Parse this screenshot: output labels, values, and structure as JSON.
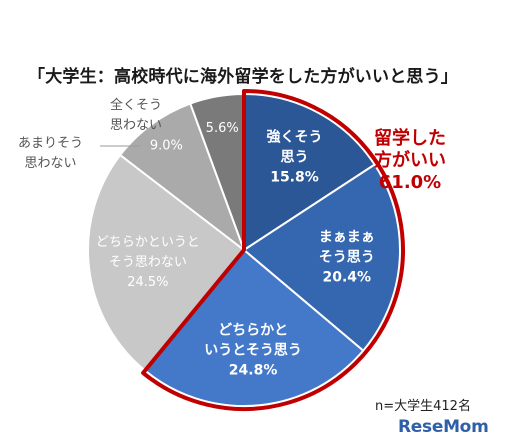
{
  "chart_data": {
    "type": "pie",
    "title": "「大学生：高校時代に海外留学をした方がいいと思う」",
    "slices": [
      {
        "label": "強くそう思う",
        "value": 15.8,
        "value_text": "15.8%",
        "color": "#2b5796",
        "group": "think"
      },
      {
        "label": "まぁまぁそう思う",
        "value": 20.4,
        "value_text": "20.4%",
        "color": "#3467b0",
        "group": "think"
      },
      {
        "label": "どちらかというとそう思う",
        "value": 24.8,
        "value_text": "24.8%",
        "color": "#4478c8",
        "group": "think"
      },
      {
        "label": "どちらかというとそう思わない",
        "value": 24.5,
        "value_text": "24.5%",
        "color": "#c8c8c8",
        "group": "not"
      },
      {
        "label": "あまりそう思わない",
        "value": 9.0,
        "value_text": "9.0%",
        "color": "#aaaaaa",
        "group": "not"
      },
      {
        "label": "全くそう思わない",
        "value": 5.6,
        "value_text": "5.6%",
        "color": "#7a7a7a",
        "group": "not"
      }
    ],
    "highlight": {
      "label": "留学した方がいい",
      "value_text": "61.0%",
      "color": "#c00000"
    },
    "note": "n=大学生412名"
  },
  "labels": {
    "slice_lines": [
      [
        "強くそう",
        "思う"
      ],
      [
        "まぁまぁ",
        "そう思う"
      ],
      [
        "どちらかと",
        "いうとそう思う"
      ],
      [
        "どちらかというと",
        "そう思わない"
      ],
      [
        "あまりそう",
        "思わない"
      ],
      [
        "全くそう",
        "思わない"
      ]
    ],
    "highlight_lines": [
      "留学した",
      "方がいい"
    ]
  },
  "logo": "ReseMom"
}
